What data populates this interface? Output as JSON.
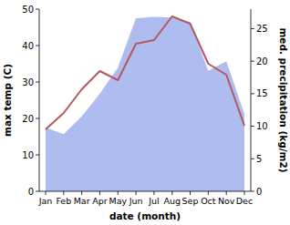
{
  "chart_data": {
    "type": "line",
    "categories": [
      "Jan",
      "Feb",
      "Mar",
      "Apr",
      "May",
      "Jun",
      "Jul",
      "Aug",
      "Sep",
      "Oct",
      "Nov",
      "Dec"
    ],
    "xlabel": "date (month)",
    "ylabel": "max temp (C)",
    "y2label": "med. precipitation (kg/m2)",
    "ylim": [
      0,
      50
    ],
    "yticks": [
      0,
      10,
      20,
      30,
      40,
      50
    ],
    "y2lim": [
      0,
      28
    ],
    "y2ticks": [
      0,
      5,
      10,
      15,
      20,
      25
    ],
    "grid": false,
    "series": [
      {
        "type": "area",
        "axis": "y2",
        "color": "#aebcf0",
        "values": [
          9.8,
          8.8,
          11.5,
          15,
          19,
          26.6,
          26.8,
          26.7,
          26,
          18.5,
          20,
          11.9
        ]
      },
      {
        "type": "line",
        "color": "#b5585d",
        "values": [
          17,
          21.5,
          28,
          33,
          30.5,
          40.5,
          41.5,
          48,
          46,
          35,
          32,
          18
        ]
      }
    ]
  }
}
